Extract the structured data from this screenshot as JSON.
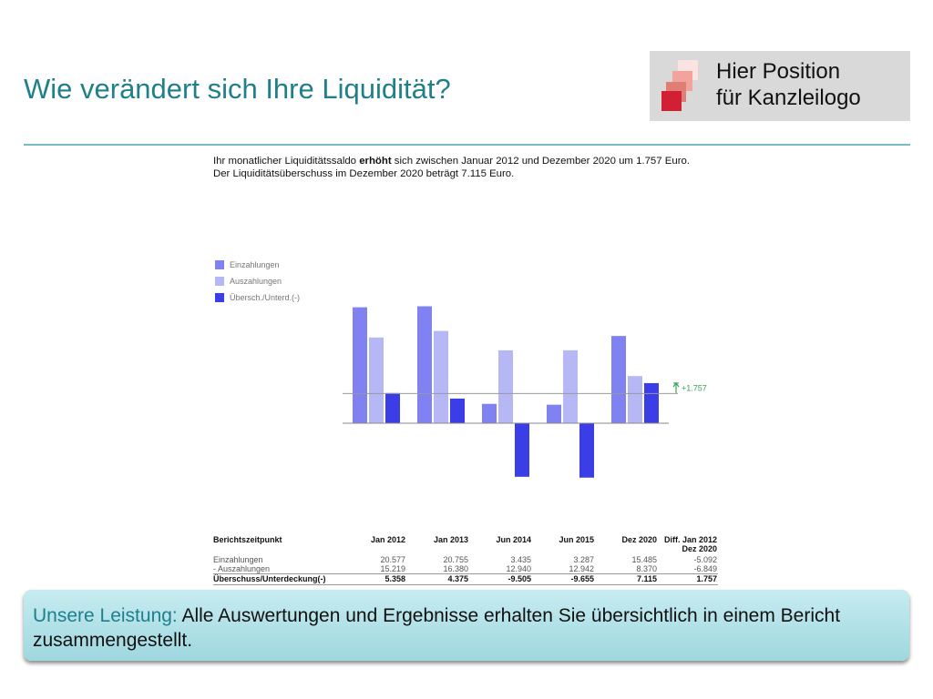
{
  "header": {
    "title": "Wie verändert sich Ihre Liquidität?"
  },
  "logo": {
    "line1": "Hier Position",
    "line2": "für Kanzleilogo"
  },
  "summary": {
    "line1_pre": "Ihr monatlicher Liquiditätssaldo ",
    "line1_bold": "erhöht",
    "line1_post": " sich zwischen Januar 2012  und Dezember 2020  um 1.757 Euro.",
    "line2": "Der Liquiditätsüberschuss im Dezember 2020  beträgt 7.115 Euro."
  },
  "callout": {
    "label": "Unsere Leistung:",
    "text": " Alle Auswertungen und Ergebnisse erhalten Sie übersichtlich in einem Bericht zusammengestellt."
  },
  "colors": {
    "einzahlungen": "#7f82f0",
    "auszahlungen": "#b6b8f6",
    "ueberschuss": "#3b3de6",
    "accent": "#1f7f8a"
  },
  "chart_data": {
    "type": "bar",
    "categories": [
      "Jan 2012",
      "Jan 2013",
      "Jun 2014",
      "Jun 2015",
      "Dez 2020"
    ],
    "series": [
      {
        "name": "Einzahlungen",
        "values": [
          20577,
          20755,
          3435,
          3287,
          15485
        ]
      },
      {
        "name": "Auszahlungen",
        "values": [
          15219,
          16380,
          12940,
          12942,
          8370
        ]
      },
      {
        "name": "Übersch./Unterd.(-)",
        "values": [
          5358,
          4375,
          -9505,
          -9655,
          7115
        ]
      }
    ],
    "annotation": "+1.757",
    "ylim": [
      -10000,
      21000
    ]
  },
  "table": {
    "header_label": "Berichtszeitpunkt",
    "columns": [
      "Jan 2012",
      "Jan 2013",
      "Jun 2014",
      "Jun 2015",
      "Dez 2020"
    ],
    "diff_header_1": "Diff. Jan 2012",
    "diff_header_2": "Dez 2020",
    "rows": [
      {
        "label": "Einzahlungen",
        "values": [
          "20.577",
          "20.755",
          "3.435",
          "3.287",
          "15.485"
        ],
        "diff": "-5.092"
      },
      {
        "label": "- Auszahlungen",
        "values": [
          "15.219",
          "16.380",
          "12.940",
          "12.942",
          "8.370"
        ],
        "diff": "-6.849"
      },
      {
        "label": "Überschuss/Unterdeckung(-)",
        "values": [
          "5.358",
          "4.375",
          "-9.505",
          "-9.655",
          "7.115"
        ],
        "diff": "1.757"
      }
    ]
  }
}
